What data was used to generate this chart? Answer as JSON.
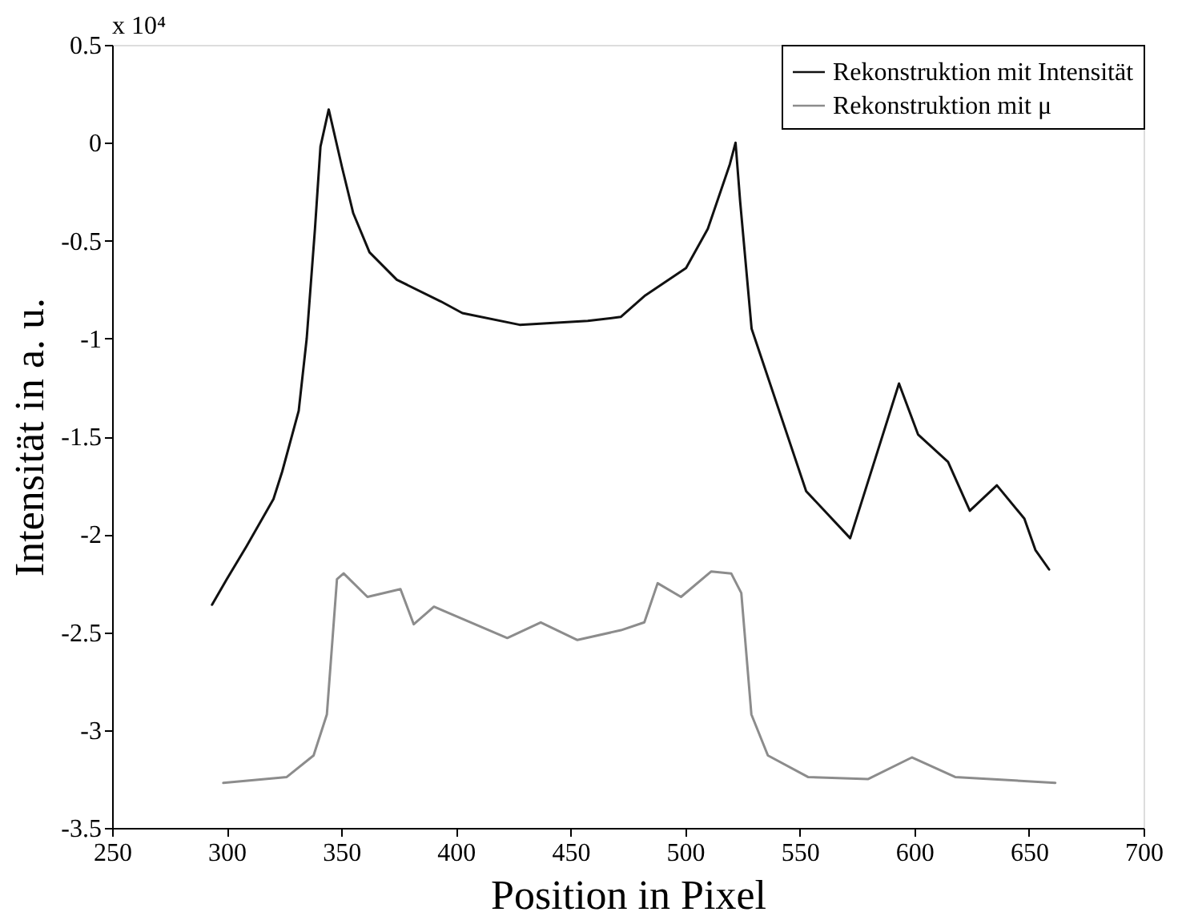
{
  "chart_data": {
    "type": "line",
    "xlabel": "Position in Pixel",
    "ylabel": "Intensität in a. u.",
    "annotations": [
      "x 10⁴"
    ],
    "xlim": [
      250,
      700
    ],
    "xticks": [
      250,
      300,
      350,
      400,
      450,
      500,
      550,
      600,
      650,
      700
    ],
    "ylim": [
      -3.5,
      0.5
    ],
    "yticks": [
      -3.5,
      -3,
      -2.5,
      -2,
      -1.5,
      -1,
      -0.5,
      0,
      0.5
    ],
    "grid": false,
    "legend": "top right",
    "line_style": "solid",
    "marker": "none",
    "series": [
      {
        "name": "Rekonstruktion mit Intensität",
        "color": "#111111",
        "x": [
          293.6,
          300,
          308.7,
          320.4,
          324.2,
          331.4,
          334.9,
          338.5,
          340.9,
          344.5,
          350.4,
          355.2,
          362.3,
          374.2,
          393.3,
          402.8,
          427.8,
          457.5,
          471.9,
          482.6,
          500.4,
          509.9,
          519.5,
          522,
          524,
          529,
          552.8,
          572,
          593.3,
          601.6,
          614.7,
          624.2,
          636,
          648,
          652.8,
          658.8
        ],
        "values": [
          -2.36,
          -2.23,
          -2.06,
          -1.82,
          -1.68,
          -1.37,
          -1.0,
          -0.44,
          -0.02,
          0.17,
          -0.13,
          -0.36,
          -0.56,
          -0.7,
          -0.81,
          -0.87,
          -0.93,
          -0.91,
          -0.89,
          -0.78,
          -0.64,
          -0.44,
          -0.11,
          0.0,
          -0.3,
          -0.95,
          -1.78,
          -2.02,
          -1.23,
          -1.49,
          -1.63,
          -1.88,
          -1.75,
          -1.92,
          -2.08,
          -2.18
        ]
      },
      {
        "name": "Rekonstruktion mit μ",
        "color": "#8c8c8c",
        "x": [
          298.5,
          326.2,
          337.9,
          343.7,
          348.1,
          351,
          361.4,
          375.8,
          381.6,
          390.4,
          422.4,
          437,
          453,
          472,
          482.2,
          488,
          498.2,
          511.4,
          520.1,
          524.5,
          528.9,
          536.1,
          553.6,
          579.9,
          598.9,
          617.8,
          661.5
        ],
        "values": [
          -3.27,
          -3.24,
          -3.13,
          -2.92,
          -2.23,
          -2.2,
          -2.32,
          -2.28,
          -2.46,
          -2.37,
          -2.53,
          -2.45,
          -2.54,
          -2.49,
          -2.45,
          -2.25,
          -2.32,
          -2.19,
          -2.2,
          -2.3,
          -2.92,
          -3.13,
          -3.24,
          -3.25,
          -3.14,
          -3.24,
          -3.27
        ]
      }
    ]
  }
}
